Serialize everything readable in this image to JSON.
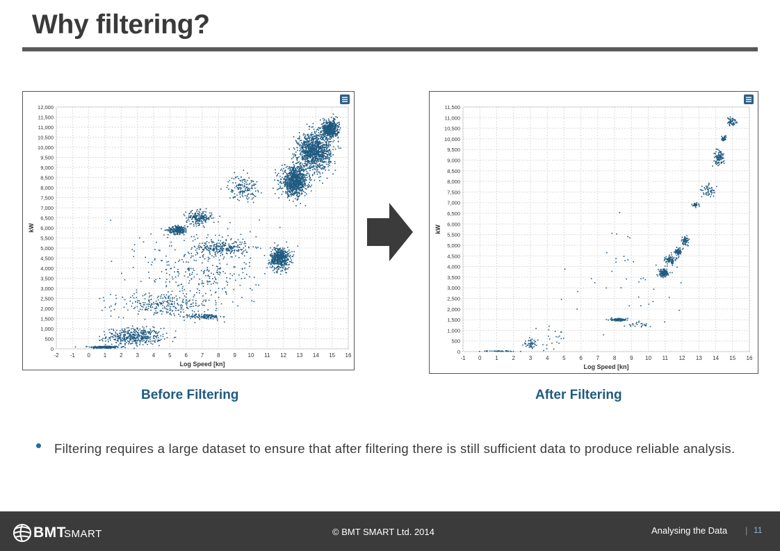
{
  "slide": {
    "title": "Why filtering?",
    "caption_before": "Before Filtering",
    "caption_after": "After Filtering",
    "bullet": "Filtering requires a large dataset to ensure that after filtering there is still sufficient data to produce reliable analysis."
  },
  "footer": {
    "copyright": "© BMT SMART Ltd. 2014",
    "section": "Analysing the Data",
    "separator": "|",
    "page": "11",
    "logo_bmt": "BMT",
    "logo_smart": "SMART"
  },
  "colors": {
    "points": "#1f5a80",
    "footer_bg": "#3b3b3b",
    "caption": "#1f5a7f"
  },
  "chart_data": [
    {
      "type": "scatter",
      "xlabel": "Log Speed [kn]",
      "ylabel": "kW",
      "xlim": [
        -2,
        16
      ],
      "ylim": [
        0,
        12000
      ],
      "xticks": [
        "-2",
        "-1",
        "0",
        "1",
        "2",
        "3",
        "4",
        "5",
        "6",
        "7",
        "8",
        "9",
        "10",
        "11",
        "12",
        "13",
        "14",
        "15",
        "16"
      ],
      "yticks": [
        "0",
        "500",
        "1,000",
        "1,500",
        "2,000",
        "2,500",
        "3,000",
        "3,500",
        "4,000",
        "4,500",
        "5,000",
        "5,500",
        "6,000",
        "6,500",
        "7,000",
        "7,500",
        "8,000",
        "8,500",
        "9,000",
        "9,500",
        "10,000",
        "10,500",
        "11,000",
        "11,500",
        "12,000"
      ],
      "grid": true,
      "menu_icon": "hamburger-menu-icon",
      "clusters": [
        {
          "x": 1.0,
          "y": 80,
          "sx": 0.9,
          "sy": 60,
          "n": 220
        },
        {
          "x": 2.8,
          "y": 600,
          "sx": 1.7,
          "sy": 420,
          "n": 420
        },
        {
          "x": 4.5,
          "y": 2200,
          "sx": 3.0,
          "sy": 600,
          "n": 260
        },
        {
          "x": 7.2,
          "y": 1600,
          "sx": 1.0,
          "sy": 130,
          "n": 120
        },
        {
          "x": 5.5,
          "y": 5900,
          "sx": 0.6,
          "sy": 200,
          "n": 220
        },
        {
          "x": 6.8,
          "y": 6500,
          "sx": 0.8,
          "sy": 350,
          "n": 200
        },
        {
          "x": 8.3,
          "y": 5000,
          "sx": 1.6,
          "sy": 350,
          "n": 220
        },
        {
          "x": 9.5,
          "y": 8000,
          "sx": 0.9,
          "sy": 600,
          "n": 150
        },
        {
          "x": 11.8,
          "y": 4500,
          "sx": 0.6,
          "sy": 550,
          "n": 520
        },
        {
          "x": 12.7,
          "y": 8300,
          "sx": 0.8,
          "sy": 700,
          "n": 900
        },
        {
          "x": 13.9,
          "y": 9800,
          "sx": 1.0,
          "sy": 900,
          "n": 1100
        },
        {
          "x": 14.9,
          "y": 10900,
          "sx": 0.5,
          "sy": 450,
          "n": 500
        },
        {
          "x": 7.0,
          "y": 4000,
          "sx": 3.5,
          "sy": 2200,
          "n": 330
        }
      ]
    },
    {
      "type": "scatter",
      "xlabel": "Log Speed [kn]",
      "ylabel": "kW",
      "xlim": [
        -1,
        16
      ],
      "ylim": [
        0,
        11500
      ],
      "xticks": [
        "-1",
        "0",
        "1",
        "2",
        "3",
        "4",
        "5",
        "6",
        "7",
        "8",
        "9",
        "10",
        "11",
        "12",
        "13",
        "14",
        "15",
        "16"
      ],
      "yticks": [
        "0",
        "500",
        "1,000",
        "1,500",
        "2,000",
        "2,500",
        "3,000",
        "3,500",
        "4,000",
        "4,500",
        "5,000",
        "5,500",
        "6,000",
        "6,500",
        "7,000",
        "7,500",
        "8,000",
        "8,500",
        "9,000",
        "9,500",
        "10,000",
        "10,500",
        "11,000",
        "11,500"
      ],
      "grid": true,
      "menu_icon": "hamburger-menu-icon",
      "clusters": [
        {
          "x": 1.2,
          "y": 20,
          "sx": 1.2,
          "sy": 20,
          "n": 40
        },
        {
          "x": 3.0,
          "y": 350,
          "sx": 0.4,
          "sy": 200,
          "n": 45
        },
        {
          "x": 4.2,
          "y": 500,
          "sx": 1.3,
          "sy": 700,
          "n": 25
        },
        {
          "x": 8.2,
          "y": 1500,
          "sx": 0.6,
          "sy": 60,
          "n": 80
        },
        {
          "x": 9.5,
          "y": 1250,
          "sx": 0.8,
          "sy": 150,
          "n": 25
        },
        {
          "x": 10.9,
          "y": 3700,
          "sx": 0.3,
          "sy": 180,
          "n": 130
        },
        {
          "x": 11.3,
          "y": 4300,
          "sx": 0.3,
          "sy": 200,
          "n": 90
        },
        {
          "x": 11.8,
          "y": 4700,
          "sx": 0.2,
          "sy": 200,
          "n": 70
        },
        {
          "x": 12.2,
          "y": 5200,
          "sx": 0.2,
          "sy": 220,
          "n": 60
        },
        {
          "x": 12.8,
          "y": 6900,
          "sx": 0.25,
          "sy": 100,
          "n": 35
        },
        {
          "x": 13.6,
          "y": 7600,
          "sx": 0.4,
          "sy": 300,
          "n": 50
        },
        {
          "x": 14.2,
          "y": 9100,
          "sx": 0.3,
          "sy": 350,
          "n": 110
        },
        {
          "x": 14.5,
          "y": 10000,
          "sx": 0.15,
          "sy": 120,
          "n": 30
        },
        {
          "x": 14.9,
          "y": 10800,
          "sx": 0.3,
          "sy": 200,
          "n": 55
        },
        {
          "x": 9.0,
          "y": 3500,
          "sx": 3.5,
          "sy": 2500,
          "n": 40
        }
      ]
    }
  ]
}
